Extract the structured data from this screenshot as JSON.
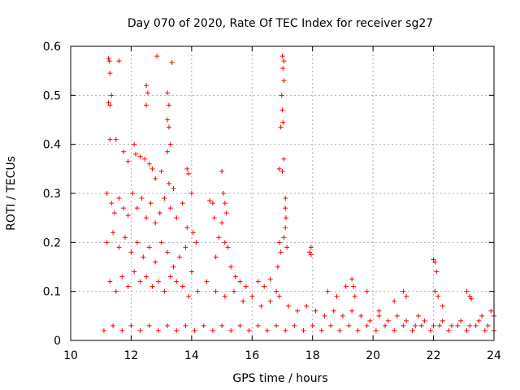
{
  "chart_data": {
    "type": "scatter",
    "title": "Day 070 of 2020, Rate Of TEC Index for receiver sg27",
    "xlabel": "GPS time / hours",
    "ylabel": "ROTI / TECUs",
    "xlim": [
      10,
      24
    ],
    "ylim": [
      0,
      0.6
    ],
    "xticks": [
      "10",
      "12",
      "14",
      "16",
      "18",
      "20",
      "22",
      "24"
    ],
    "yticks": [
      "0",
      "0.1",
      "0.2",
      "0.3",
      "0.4",
      "0.5",
      "0.6"
    ],
    "grid": true,
    "marker": "+",
    "color": "#ff0000",
    "series": [
      {
        "name": "ROTI",
        "points": [
          [
            11.25,
            0.575
          ],
          [
            11.28,
            0.57
          ],
          [
            11.3,
            0.545
          ],
          [
            11.25,
            0.485
          ],
          [
            11.3,
            0.48
          ],
          [
            11.35,
            0.5
          ],
          [
            11.6,
            0.57
          ],
          [
            12.85,
            0.58
          ],
          [
            13.35,
            0.567
          ],
          [
            12.5,
            0.52
          ],
          [
            12.55,
            0.505
          ],
          [
            12.5,
            0.48
          ],
          [
            13.2,
            0.505
          ],
          [
            13.25,
            0.48
          ],
          [
            13.2,
            0.45
          ],
          [
            13.25,
            0.435
          ],
          [
            13.3,
            0.4
          ],
          [
            13.2,
            0.385
          ],
          [
            17.0,
            0.58
          ],
          [
            17.05,
            0.57
          ],
          [
            17.02,
            0.555
          ],
          [
            17.05,
            0.53
          ],
          [
            16.98,
            0.5
          ],
          [
            17.0,
            0.47
          ],
          [
            17.02,
            0.445
          ],
          [
            16.95,
            0.435
          ],
          [
            17.05,
            0.37
          ],
          [
            16.9,
            0.35
          ],
          [
            17.0,
            0.345
          ],
          [
            17.1,
            0.29
          ],
          [
            17.1,
            0.27
          ],
          [
            17.12,
            0.25
          ],
          [
            17.1,
            0.23
          ],
          [
            17.05,
            0.21
          ],
          [
            17.15,
            0.19
          ],
          [
            11.3,
            0.41
          ],
          [
            11.5,
            0.41
          ],
          [
            11.75,
            0.385
          ],
          [
            11.9,
            0.365
          ],
          [
            12.1,
            0.4
          ],
          [
            12.15,
            0.38
          ],
          [
            12.3,
            0.375
          ],
          [
            12.45,
            0.37
          ],
          [
            12.6,
            0.36
          ],
          [
            12.7,
            0.35
          ],
          [
            12.8,
            0.33
          ],
          [
            13.0,
            0.345
          ],
          [
            13.25,
            0.32
          ],
          [
            13.4,
            0.31
          ],
          [
            13.85,
            0.35
          ],
          [
            13.9,
            0.34
          ],
          [
            14.0,
            0.3
          ],
          [
            11.2,
            0.3
          ],
          [
            11.35,
            0.28
          ],
          [
            11.45,
            0.26
          ],
          [
            11.6,
            0.29
          ],
          [
            11.75,
            0.27
          ],
          [
            11.9,
            0.255
          ],
          [
            12.05,
            0.3
          ],
          [
            12.2,
            0.27
          ],
          [
            12.35,
            0.29
          ],
          [
            12.5,
            0.25
          ],
          [
            12.65,
            0.28
          ],
          [
            12.8,
            0.24
          ],
          [
            12.95,
            0.26
          ],
          [
            13.1,
            0.29
          ],
          [
            13.3,
            0.27
          ],
          [
            13.5,
            0.25
          ],
          [
            13.7,
            0.28
          ],
          [
            13.85,
            0.23
          ],
          [
            14.05,
            0.22
          ],
          [
            14.15,
            0.2
          ],
          [
            11.2,
            0.2
          ],
          [
            11.4,
            0.22
          ],
          [
            11.6,
            0.19
          ],
          [
            11.8,
            0.21
          ],
          [
            12.0,
            0.18
          ],
          [
            12.2,
            0.2
          ],
          [
            12.4,
            0.17
          ],
          [
            12.6,
            0.19
          ],
          [
            12.8,
            0.16
          ],
          [
            13.0,
            0.2
          ],
          [
            13.2,
            0.18
          ],
          [
            13.4,
            0.15
          ],
          [
            13.6,
            0.17
          ],
          [
            13.8,
            0.19
          ],
          [
            14.0,
            0.14
          ],
          [
            14.6,
            0.285
          ],
          [
            14.7,
            0.28
          ],
          [
            14.75,
            0.25
          ],
          [
            15.0,
            0.345
          ],
          [
            15.05,
            0.3
          ],
          [
            15.1,
            0.28
          ],
          [
            15.15,
            0.26
          ],
          [
            15.0,
            0.24
          ],
          [
            14.9,
            0.21
          ],
          [
            15.1,
            0.2
          ],
          [
            15.2,
            0.19
          ],
          [
            14.8,
            0.17
          ],
          [
            15.3,
            0.15
          ],
          [
            15.45,
            0.13
          ],
          [
            15.6,
            0.12
          ],
          [
            15.8,
            0.11
          ],
          [
            16.2,
            0.12
          ],
          [
            16.4,
            0.11
          ],
          [
            16.6,
            0.125
          ],
          [
            16.8,
            0.1
          ],
          [
            16.9,
            0.2
          ],
          [
            16.95,
            0.18
          ],
          [
            16.85,
            0.15
          ],
          [
            17.95,
            0.19
          ],
          [
            17.9,
            0.18
          ],
          [
            17.95,
            0.175
          ],
          [
            18.5,
            0.1
          ],
          [
            18.8,
            0.09
          ],
          [
            19.1,
            0.11
          ],
          [
            19.3,
            0.125
          ],
          [
            19.35,
            0.11
          ],
          [
            19.4,
            0.09
          ],
          [
            19.8,
            0.1
          ],
          [
            20.2,
            0.06
          ],
          [
            20.7,
            0.08
          ],
          [
            21.0,
            0.1
          ],
          [
            21.1,
            0.09
          ],
          [
            21.5,
            0.05
          ],
          [
            22.0,
            0.165
          ],
          [
            22.05,
            0.16
          ],
          [
            22.1,
            0.14
          ],
          [
            22.05,
            0.1
          ],
          [
            22.15,
            0.09
          ],
          [
            22.3,
            0.07
          ],
          [
            23.1,
            0.1
          ],
          [
            23.2,
            0.09
          ],
          [
            23.25,
            0.085
          ],
          [
            23.6,
            0.05
          ],
          [
            23.9,
            0.06
          ],
          [
            24.0,
            0.05
          ],
          [
            11.3,
            0.12
          ],
          [
            11.5,
            0.1
          ],
          [
            11.7,
            0.13
          ],
          [
            11.9,
            0.11
          ],
          [
            12.1,
            0.14
          ],
          [
            12.3,
            0.12
          ],
          [
            12.5,
            0.13
          ],
          [
            12.7,
            0.11
          ],
          [
            12.9,
            0.12
          ],
          [
            13.1,
            0.1
          ],
          [
            13.3,
            0.13
          ],
          [
            13.5,
            0.12
          ],
          [
            13.7,
            0.11
          ],
          [
            13.9,
            0.09
          ],
          [
            14.2,
            0.1
          ],
          [
            14.5,
            0.12
          ],
          [
            14.8,
            0.1
          ],
          [
            15.1,
            0.09
          ],
          [
            15.4,
            0.1
          ],
          [
            15.7,
            0.08
          ],
          [
            16.0,
            0.09
          ],
          [
            16.3,
            0.07
          ],
          [
            16.6,
            0.08
          ],
          [
            16.9,
            0.09
          ],
          [
            17.2,
            0.07
          ],
          [
            17.5,
            0.06
          ],
          [
            17.8,
            0.07
          ],
          [
            18.1,
            0.06
          ],
          [
            18.4,
            0.05
          ],
          [
            18.7,
            0.06
          ],
          [
            19.0,
            0.05
          ],
          [
            19.3,
            0.06
          ],
          [
            19.6,
            0.05
          ],
          [
            19.9,
            0.04
          ],
          [
            20.2,
            0.05
          ],
          [
            20.5,
            0.04
          ],
          [
            20.8,
            0.05
          ],
          [
            21.1,
            0.04
          ],
          [
            21.4,
            0.03
          ],
          [
            21.7,
            0.04
          ],
          [
            22.0,
            0.03
          ],
          [
            22.3,
            0.04
          ],
          [
            22.6,
            0.03
          ],
          [
            22.9,
            0.04
          ],
          [
            23.2,
            0.03
          ],
          [
            23.5,
            0.04
          ],
          [
            23.8,
            0.03
          ],
          [
            11.1,
            0.02
          ],
          [
            11.4,
            0.03
          ],
          [
            11.7,
            0.02
          ],
          [
            12.0,
            0.03
          ],
          [
            12.3,
            0.02
          ],
          [
            12.6,
            0.03
          ],
          [
            12.9,
            0.02
          ],
          [
            13.2,
            0.03
          ],
          [
            13.5,
            0.02
          ],
          [
            13.8,
            0.03
          ],
          [
            14.1,
            0.02
          ],
          [
            14.4,
            0.03
          ],
          [
            14.7,
            0.02
          ],
          [
            15.0,
            0.03
          ],
          [
            15.3,
            0.02
          ],
          [
            15.6,
            0.03
          ],
          [
            15.9,
            0.02
          ],
          [
            16.2,
            0.03
          ],
          [
            16.5,
            0.02
          ],
          [
            16.8,
            0.03
          ],
          [
            17.1,
            0.02
          ],
          [
            17.4,
            0.03
          ],
          [
            17.7,
            0.02
          ],
          [
            18.0,
            0.03
          ],
          [
            18.3,
            0.02
          ],
          [
            18.6,
            0.03
          ],
          [
            18.9,
            0.02
          ],
          [
            19.2,
            0.03
          ],
          [
            19.5,
            0.02
          ],
          [
            19.8,
            0.03
          ],
          [
            20.1,
            0.02
          ],
          [
            20.4,
            0.03
          ],
          [
            20.7,
            0.02
          ],
          [
            21.0,
            0.03
          ],
          [
            21.3,
            0.02
          ],
          [
            21.6,
            0.03
          ],
          [
            21.9,
            0.02
          ],
          [
            22.2,
            0.03
          ],
          [
            22.5,
            0.02
          ],
          [
            22.8,
            0.03
          ],
          [
            23.1,
            0.02
          ],
          [
            23.4,
            0.03
          ],
          [
            23.7,
            0.02
          ],
          [
            24.0,
            0.02
          ]
        ]
      }
    ]
  }
}
